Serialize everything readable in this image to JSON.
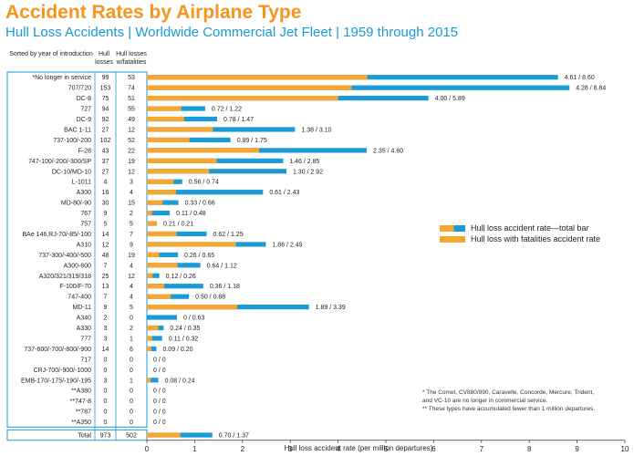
{
  "title": "Accident Rates by Airplane Type",
  "subtitle": "Hull Loss Accidents | Worldwide Commercial Jet Fleet | 1959 through 2015",
  "table_headers": {
    "sorted": "Sorted by year of introduction",
    "hull_losses": "Hull losses",
    "hull_losses_fatalities": "Hull losses w/fatalities"
  },
  "legend": {
    "total": "Hull loss accident rate—total bar",
    "fatal": "Hull loss with fatalities accident rate"
  },
  "notes": [
    "* The Comet, CV880/990, Caravelle, Concorde, Mercure, Trident,",
    "  and VC-10 are no longer in commercial service.",
    "** These types have accumulated fewer than 1 million departures."
  ],
  "colors": {
    "title": "#f7941d",
    "subtitle": "#1a9ad6",
    "total_bar": "#1a9ad6",
    "fatal_bar": "#f7a731",
    "border": "#1a9ad6"
  },
  "chart_data": {
    "type": "bar",
    "orientation": "horizontal",
    "title": "Accident Rates by Airplane Type",
    "xlabel": "Hull loss accident rate (per million departures)",
    "xlim": [
      0,
      10
    ],
    "xticks": [
      0,
      1,
      2,
      3,
      4,
      5,
      6,
      7,
      8,
      9,
      10
    ],
    "series": [
      {
        "name": "Hull loss with fatalities accident rate",
        "key": "fatal"
      },
      {
        "name": "Hull loss accident rate—total bar",
        "key": "total"
      }
    ],
    "rows": [
      {
        "type": "*No longer in service",
        "hull": 99,
        "fatal_count": 53,
        "fatal": 4.61,
        "total": 8.6,
        "label": "4.61 / 8.60"
      },
      {
        "type": "707/720",
        "hull": 153,
        "fatal_count": 74,
        "fatal": 4.28,
        "total": 8.84,
        "label": "4.28 / 8.84"
      },
      {
        "type": "DC-8",
        "hull": 75,
        "fatal_count": 51,
        "fatal": 4.0,
        "total": 5.89,
        "label": "4.00 / 5.89"
      },
      {
        "type": "727",
        "hull": 94,
        "fatal_count": 55,
        "fatal": 0.72,
        "total": 1.22,
        "label": "0.72 / 1.22"
      },
      {
        "type": "DC-9",
        "hull": 92,
        "fatal_count": 49,
        "fatal": 0.78,
        "total": 1.47,
        "label": "0.78 / 1.47"
      },
      {
        "type": "BAC 1-11",
        "hull": 27,
        "fatal_count": 12,
        "fatal": 1.38,
        "total": 3.1,
        "label": "1.38 / 3.10"
      },
      {
        "type": "737-100/-200",
        "hull": 102,
        "fatal_count": 52,
        "fatal": 0.89,
        "total": 1.75,
        "label": "0.89 / 1.75"
      },
      {
        "type": "F-28",
        "hull": 43,
        "fatal_count": 22,
        "fatal": 2.35,
        "total": 4.6,
        "label": "2.35 / 4.60"
      },
      {
        "type": "747-100/-200/-300/SP",
        "hull": 37,
        "fatal_count": 19,
        "fatal": 1.46,
        "total": 2.85,
        "label": "1.46 / 2.85"
      },
      {
        "type": "DC-10/MD-10",
        "hull": 27,
        "fatal_count": 12,
        "fatal": 1.3,
        "total": 2.92,
        "label": "1.30 / 2.92"
      },
      {
        "type": "L-1011",
        "hull": 4,
        "fatal_count": 3,
        "fatal": 0.56,
        "total": 0.74,
        "label": "0.56 / 0.74"
      },
      {
        "type": "A300",
        "hull": 16,
        "fatal_count": 4,
        "fatal": 0.61,
        "total": 2.43,
        "label": "0.61 / 2.43"
      },
      {
        "type": "MD-80/-90",
        "hull": 30,
        "fatal_count": 15,
        "fatal": 0.33,
        "total": 0.66,
        "label": "0.33 / 0.66"
      },
      {
        "type": "767",
        "hull": 9,
        "fatal_count": 2,
        "fatal": 0.11,
        "total": 0.48,
        "label": "0.11 / 0.48"
      },
      {
        "type": "757",
        "hull": 5,
        "fatal_count": 5,
        "fatal": 0.21,
        "total": 0.21,
        "label": "0.21 / 0.21"
      },
      {
        "type": "BAe 146,RJ-70/-85/-100",
        "hull": 14,
        "fatal_count": 7,
        "fatal": 0.62,
        "total": 1.25,
        "label": "0.62 / 1.25"
      },
      {
        "type": "A310",
        "hull": 12,
        "fatal_count": 9,
        "fatal": 1.86,
        "total": 2.49,
        "label": "1.86 / 2.49"
      },
      {
        "type": "737-300/-400/-500",
        "hull": 48,
        "fatal_count": 19,
        "fatal": 0.26,
        "total": 0.65,
        "label": "0.26 / 0.65"
      },
      {
        "type": "A300-600",
        "hull": 7,
        "fatal_count": 4,
        "fatal": 0.64,
        "total": 1.12,
        "label": "0.64 / 1.12"
      },
      {
        "type": "A320/321/319/318",
        "hull": 25,
        "fatal_count": 12,
        "fatal": 0.12,
        "total": 0.26,
        "label": "0.12 / 0.26"
      },
      {
        "type": "F-100/F-70",
        "hull": 13,
        "fatal_count": 4,
        "fatal": 0.36,
        "total": 1.18,
        "label": "0.36 / 1.18"
      },
      {
        "type": "747-400",
        "hull": 7,
        "fatal_count": 4,
        "fatal": 0.5,
        "total": 0.88,
        "label": "0.50 / 0.88"
      },
      {
        "type": "MD-11",
        "hull": 9,
        "fatal_count": 5,
        "fatal": 1.89,
        "total": 3.39,
        "label": "1.89 / 3.39"
      },
      {
        "type": "A340",
        "hull": 2,
        "fatal_count": 0,
        "fatal": 0,
        "total": 0.63,
        "label": "0 / 0.63"
      },
      {
        "type": "A330",
        "hull": 3,
        "fatal_count": 2,
        "fatal": 0.24,
        "total": 0.35,
        "label": "0.24 / 0.35"
      },
      {
        "type": "777",
        "hull": 3,
        "fatal_count": 1,
        "fatal": 0.11,
        "total": 0.32,
        "label": "0.11 / 0.32"
      },
      {
        "type": "737-600/-700/-800/-900",
        "hull": 14,
        "fatal_count": 6,
        "fatal": 0.09,
        "total": 0.2,
        "label": "0.09 / 0.20"
      },
      {
        "type": "717",
        "hull": 0,
        "fatal_count": 0,
        "fatal": 0,
        "total": 0,
        "label": "0 / 0"
      },
      {
        "type": "CRJ-700/-900/-1000",
        "hull": 0,
        "fatal_count": 0,
        "fatal": 0,
        "total": 0,
        "label": "0 / 0"
      },
      {
        "type": "EMB-170/-175/-190/-195",
        "hull": 3,
        "fatal_count": 1,
        "fatal": 0.08,
        "total": 0.24,
        "label": "0.08 / 0.24"
      },
      {
        "type": "**A380",
        "hull": 0,
        "fatal_count": 0,
        "fatal": 0,
        "total": 0,
        "label": "0 / 0"
      },
      {
        "type": "**747-8",
        "hull": 0,
        "fatal_count": 0,
        "fatal": 0,
        "total": 0,
        "label": "0 / 0"
      },
      {
        "type": "**787",
        "hull": 0,
        "fatal_count": 0,
        "fatal": 0,
        "total": 0,
        "label": "0 / 0"
      },
      {
        "type": "**A350",
        "hull": 0,
        "fatal_count": 0,
        "fatal": 0,
        "total": 0,
        "label": "0 / 0"
      }
    ],
    "total_row": {
      "type": "Total",
      "hull": 973,
      "fatal_count": 502,
      "fatal": 0.7,
      "total": 1.37,
      "label": "0.70 / 1.37"
    }
  }
}
